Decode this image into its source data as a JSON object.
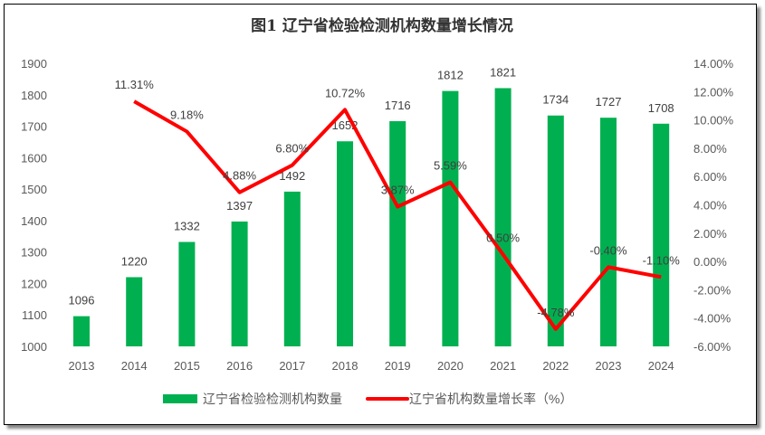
{
  "chart_data": {
    "type": "bar+line",
    "title": "图1 辽宁省检验检测机构数量增长情况",
    "categories": [
      "2013",
      "2014",
      "2015",
      "2016",
      "2017",
      "2018",
      "2019",
      "2020",
      "2021",
      "2022",
      "2023",
      "2024"
    ],
    "series": [
      {
        "name": "辽宁省检验检测机构数量",
        "type": "bar",
        "axis": "left",
        "color": "#00B050",
        "values": [
          1096,
          1220,
          1332,
          1397,
          1492,
          1652,
          1716,
          1812,
          1821,
          1734,
          1727,
          1708
        ],
        "labels": [
          "1096",
          "1220",
          "1332",
          "1397",
          "1492",
          "1652",
          "1716",
          "1812",
          "1821",
          "1734",
          "1727",
          "1708"
        ]
      },
      {
        "name": "辽宁省机构数量增长率（%）",
        "type": "line",
        "axis": "right",
        "color": "#FF0000",
        "values": [
          null,
          11.31,
          9.18,
          4.88,
          6.8,
          10.72,
          3.87,
          5.59,
          0.5,
          -4.78,
          -0.4,
          -1.1
        ],
        "labels": [
          "",
          "11.31%",
          "9.18%",
          "4.88%",
          "6.80%",
          "10.72%",
          "3.87%",
          "5.59%",
          "0.50%",
          "-4.78%",
          "-0.40%",
          "-1.10%"
        ]
      }
    ],
    "y_left": {
      "min": 1000,
      "max": 1900,
      "step": 100,
      "ticks": [
        "1000",
        "1100",
        "1200",
        "1300",
        "1400",
        "1500",
        "1600",
        "1700",
        "1800",
        "1900"
      ]
    },
    "y_right": {
      "min": -6,
      "max": 14,
      "step": 2,
      "ticks": [
        "-6.00%",
        "-4.00%",
        "-2.00%",
        "0.00%",
        "2.00%",
        "4.00%",
        "6.00%",
        "8.00%",
        "10.00%",
        "12.00%",
        "14.00%"
      ]
    },
    "grid": false,
    "legend": "bottom"
  }
}
